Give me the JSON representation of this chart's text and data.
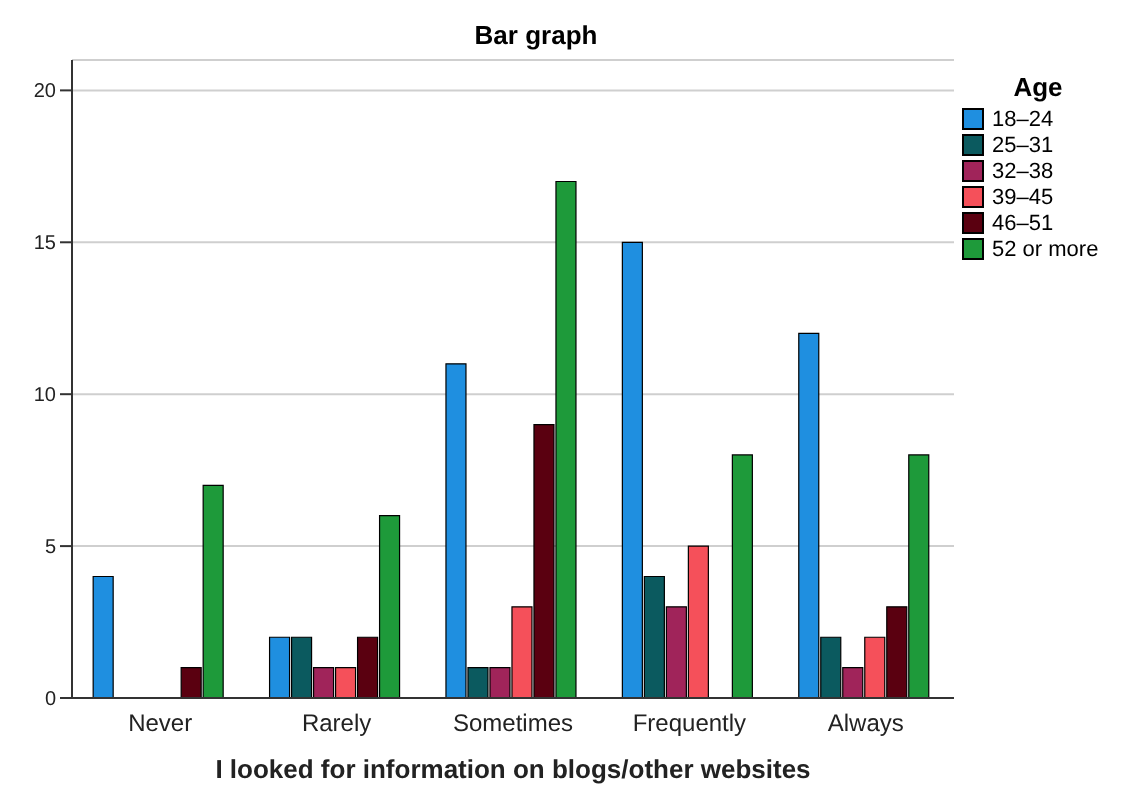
{
  "chart_data": {
    "type": "bar",
    "title": "Bar graph",
    "xlabel": "I looked for information on blogs/other websites",
    "legend_title": "Age",
    "categories": [
      "Never",
      "Rarely",
      "Sometimes",
      "Frequently",
      "Always"
    ],
    "series": [
      {
        "name": "18–24",
        "color": "#1f8fe0",
        "values": [
          4,
          2,
          11,
          15,
          12
        ]
      },
      {
        "name": "25–31",
        "color": "#0b5a5f",
        "values": [
          0,
          2,
          1,
          4,
          2
        ]
      },
      {
        "name": "32–38",
        "color": "#a0245a",
        "values": [
          0,
          1,
          1,
          3,
          1
        ]
      },
      {
        "name": "39–45",
        "color": "#f5505a",
        "values": [
          0,
          1,
          3,
          5,
          2
        ]
      },
      {
        "name": "46–51",
        "color": "#5a0010",
        "values": [
          1,
          2,
          9,
          0,
          3
        ]
      },
      {
        "name": "52 or more",
        "color": "#1e9a3a",
        "values": [
          7,
          6,
          17,
          8,
          8
        ]
      }
    ],
    "ylim": [
      0,
      21
    ],
    "yticks": [
      0,
      5,
      10,
      15,
      20
    ],
    "grid": "y",
    "legend": "top right"
  }
}
